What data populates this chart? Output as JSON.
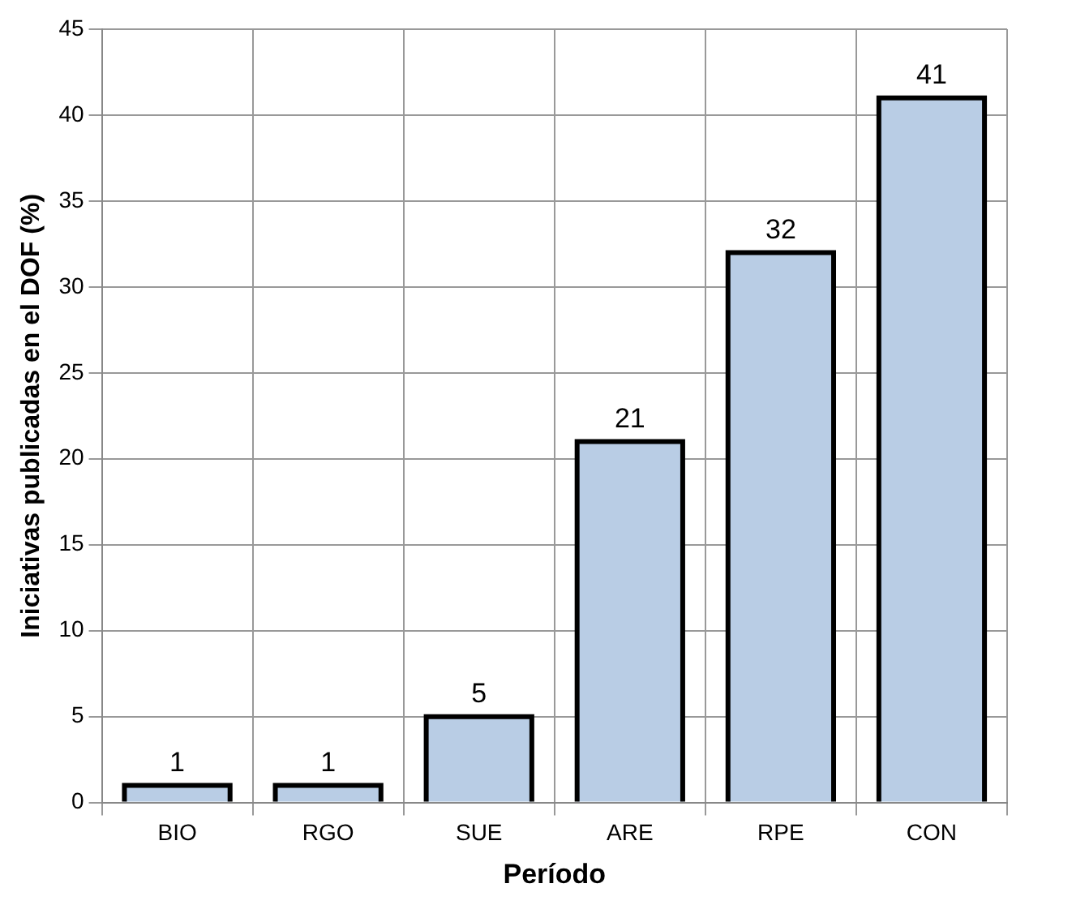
{
  "chart_data": {
    "type": "bar",
    "xlabel": "Período",
    "ylabel": "Iniciativas publicadas en el DOF (%)",
    "categories": [
      "BIO",
      "RGO",
      "SUE",
      "ARE",
      "RPE",
      "CON"
    ],
    "values": [
      1,
      1,
      5,
      21,
      32,
      41
    ],
    "color": "#b9cde5",
    "ylim": [
      0,
      45
    ],
    "yticks": [
      0,
      5,
      10,
      15,
      20,
      25,
      30,
      35,
      40,
      45
    ],
    "grid": true,
    "data_labels": true,
    "legend": false
  }
}
